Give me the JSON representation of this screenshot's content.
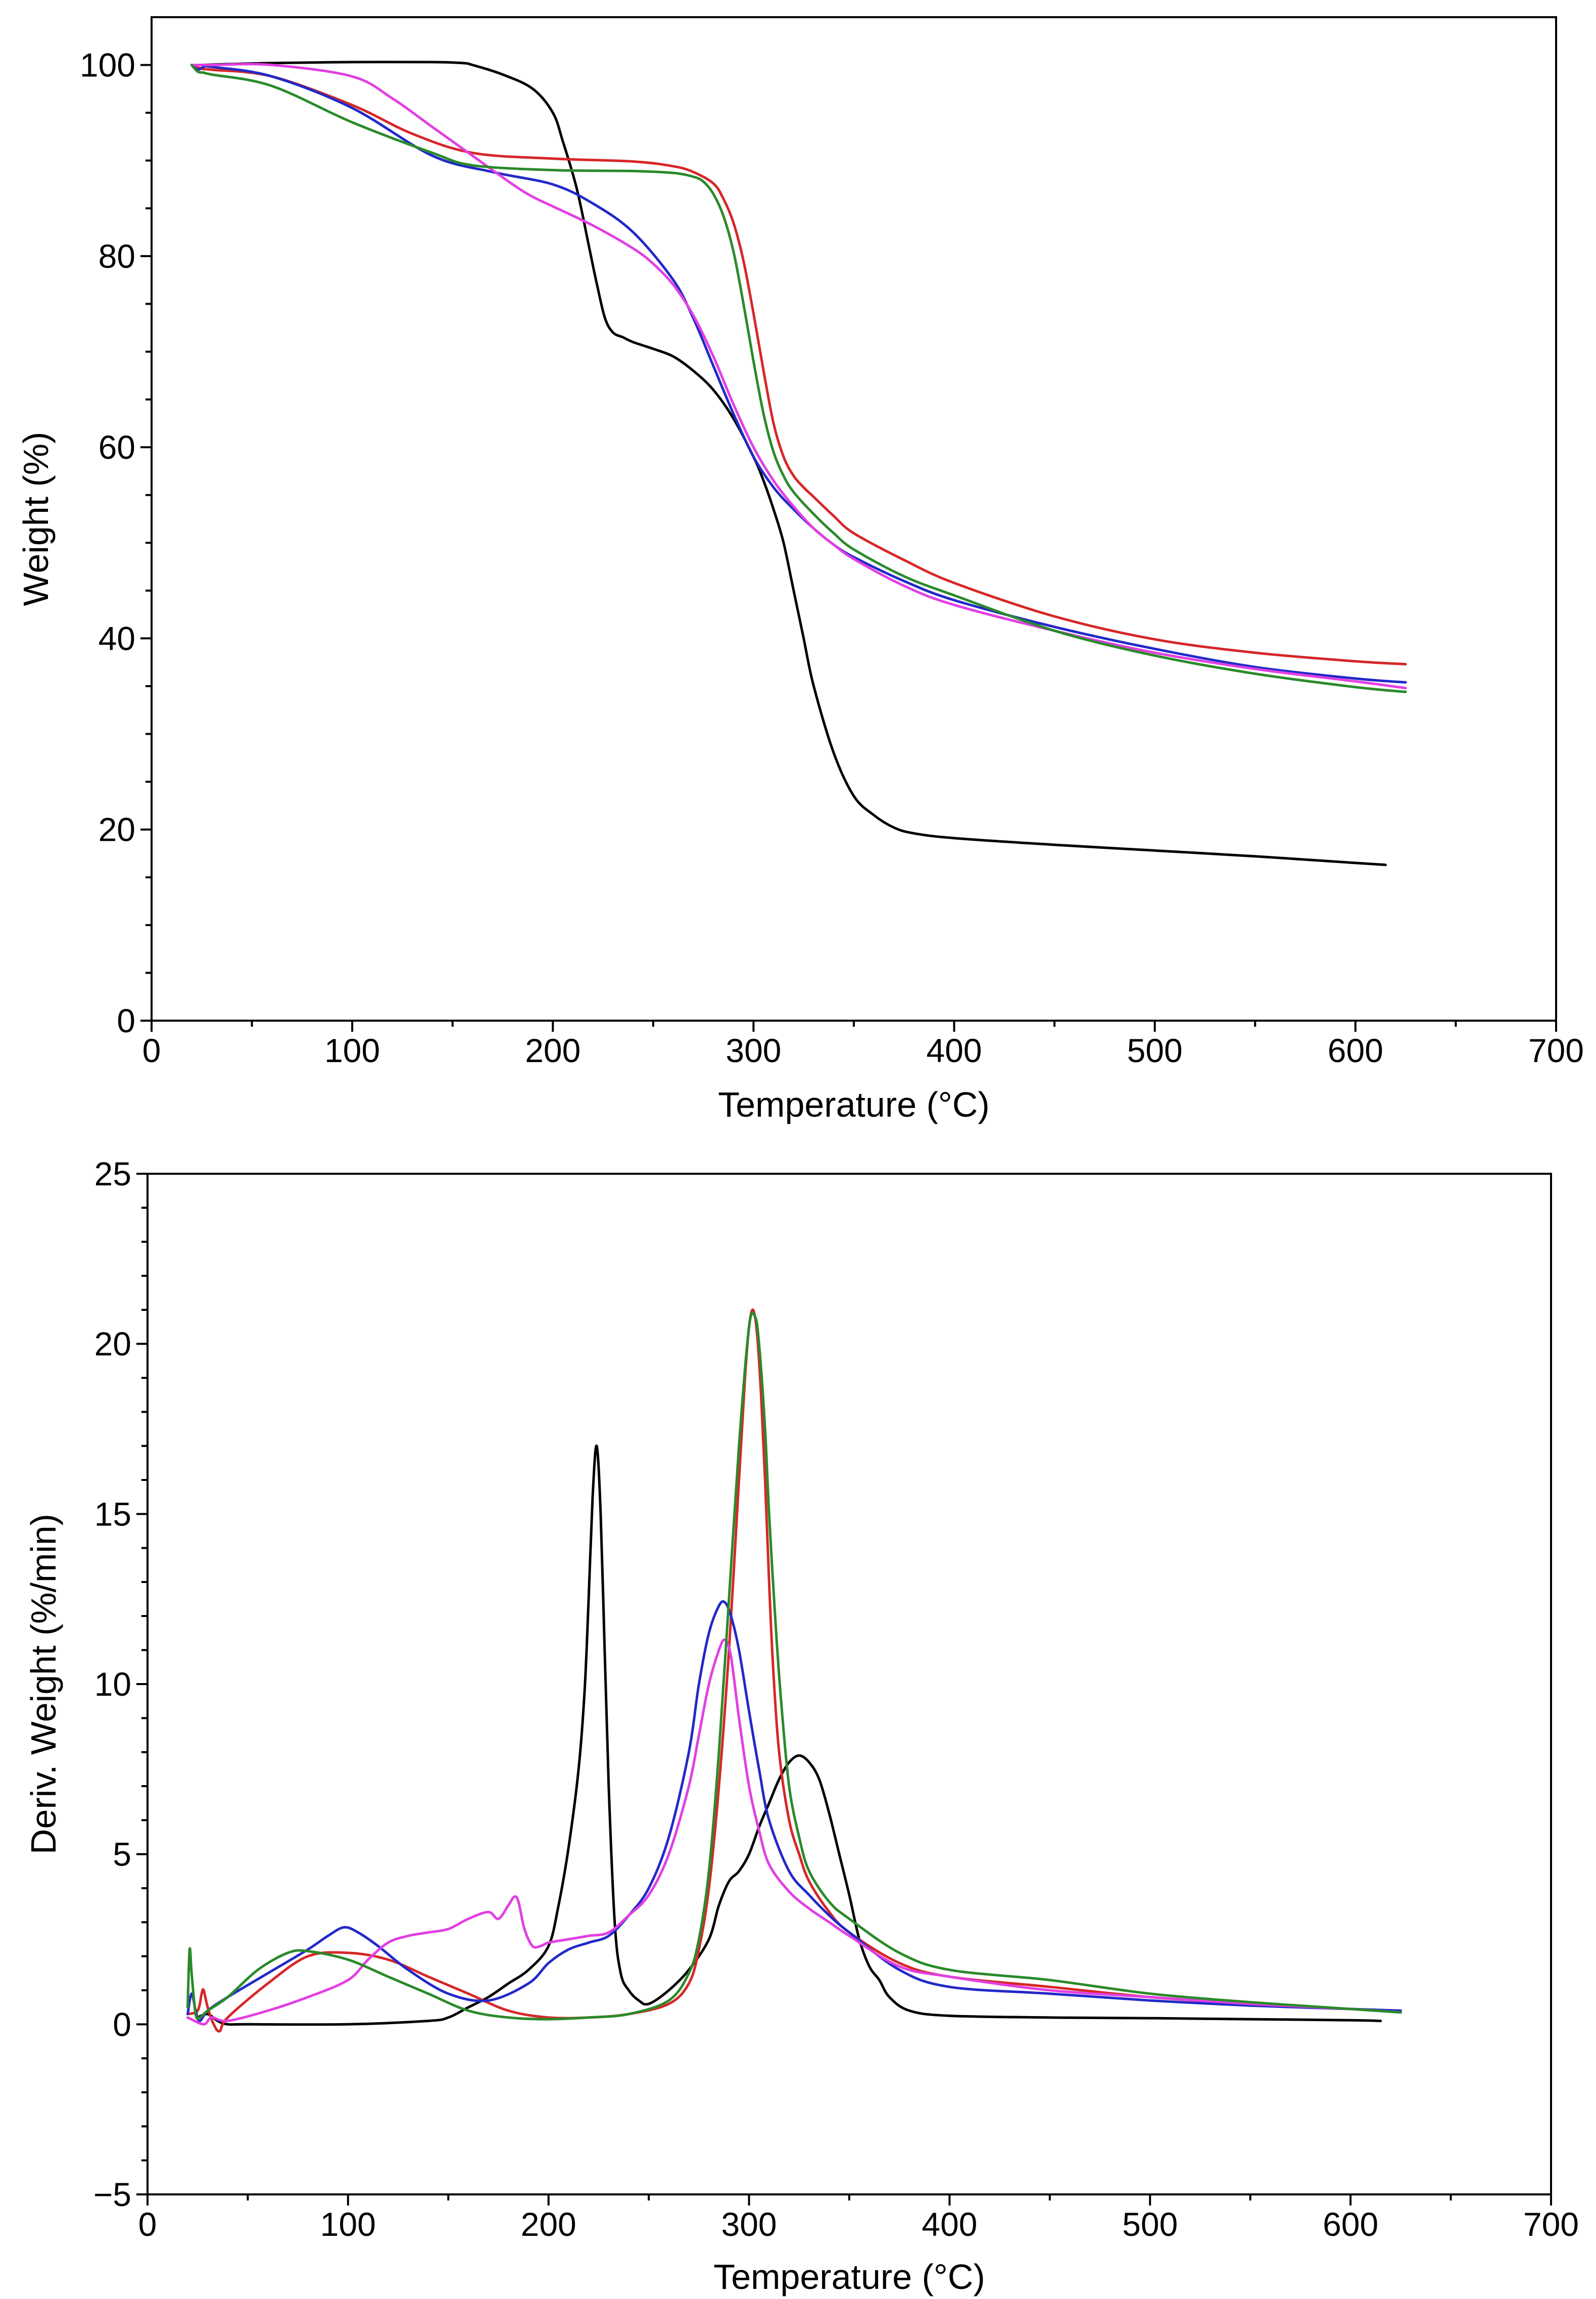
{
  "chart_data": [
    {
      "type": "line",
      "title": "",
      "xlabel": "Temperature (°C)",
      "ylabel": "Weight (%)",
      "xlim": [
        0,
        700
      ],
      "ylim": [
        0,
        105
      ],
      "xticks": [
        0,
        100,
        200,
        300,
        400,
        500,
        600,
        700
      ],
      "yticks": [
        0,
        20,
        40,
        60,
        80,
        100
      ],
      "legend": "none",
      "grid": false,
      "series": [
        {
          "color": "#000000",
          "x": [
            25,
            40,
            60,
            100,
            140,
            155,
            160,
            175,
            190,
            200,
            205,
            212,
            218,
            222,
            226,
            230,
            235,
            240,
            250,
            260,
            270,
            280,
            290,
            300,
            305,
            310,
            315,
            320,
            325,
            330,
            340,
            350,
            360,
            370,
            380,
            400,
            450,
            500,
            550,
            600,
            615
          ],
          "y": [
            100,
            100.1,
            100.2,
            100.3,
            100.3,
            100.2,
            100,
            99,
            97.5,
            95,
            92,
            87,
            81,
            77,
            73.5,
            72,
            71.5,
            71,
            70.3,
            69.5,
            68,
            66,
            63,
            59,
            56.5,
            53.5,
            50,
            45,
            40,
            35,
            28,
            23.5,
            21.5,
            20.2,
            19.6,
            19.1,
            18.4,
            17.8,
            17.2,
            16.5,
            16.3
          ]
        },
        {
          "color": "#d62728",
          "x": [
            20,
            25,
            30,
            60,
            100,
            130,
            160,
            200,
            240,
            260,
            270,
            280,
            285,
            290,
            295,
            300,
            305,
            310,
            315,
            320,
            325,
            330,
            340,
            350,
            375,
            400,
            450,
            500,
            550,
            600,
            625
          ],
          "y": [
            100,
            99.6,
            99.5,
            98.8,
            95.8,
            92.8,
            90.8,
            90.2,
            89.9,
            89.4,
            88.8,
            87.6,
            86,
            83.5,
            79.5,
            74,
            68,
            62.5,
            59,
            57,
            55.8,
            54.8,
            52.8,
            51,
            48.2,
            45.8,
            42.3,
            39.9,
            38.5,
            37.6,
            37.3
          ]
        },
        {
          "color": "#2229c8",
          "x": [
            20,
            23,
            26,
            30,
            60,
            100,
            140,
            170,
            200,
            220,
            240,
            260,
            270,
            280,
            290,
            300,
            310,
            320,
            330,
            340,
            350,
            375,
            400,
            450,
            500,
            550,
            600,
            625
          ],
          "y": [
            100,
            99.5,
            99.8,
            99.8,
            98.8,
            95.5,
            90.5,
            88.8,
            87.5,
            85.5,
            82.5,
            77.5,
            73.5,
            68.5,
            63.5,
            59,
            55.8,
            53.5,
            51.5,
            49.8,
            48.5,
            46,
            44,
            41.2,
            38.9,
            37,
            35.8,
            35.4
          ]
        },
        {
          "color": "#e23fe2",
          "x": [
            20,
            30,
            60,
            100,
            120,
            140,
            160,
            180,
            190,
            200,
            220,
            240,
            250,
            260,
            270,
            280,
            290,
            300,
            310,
            320,
            330,
            340,
            350,
            375,
            400,
            450,
            500,
            550,
            600,
            625
          ],
          "y": [
            100,
            100,
            100,
            98.8,
            96.5,
            93.5,
            90.5,
            87.5,
            86.2,
            85.2,
            83.2,
            80.8,
            79.2,
            77,
            73.8,
            69.5,
            64.5,
            60,
            56.5,
            53.8,
            51.5,
            49.8,
            48.3,
            45.5,
            43.5,
            40.8,
            38.5,
            36.8,
            35.5,
            34.8
          ]
        },
        {
          "color": "#2a8a2a",
          "x": [
            20,
            23,
            26,
            30,
            60,
            100,
            140,
            160,
            200,
            240,
            260,
            270,
            275,
            280,
            285,
            290,
            295,
            300,
            305,
            310,
            315,
            320,
            330,
            340,
            350,
            375,
            400,
            450,
            500,
            550,
            600,
            625
          ],
          "y": [
            100,
            99.3,
            99.2,
            99,
            97.8,
            94,
            90.8,
            89.5,
            89,
            88.9,
            88.7,
            88.3,
            87.8,
            86.5,
            84.2,
            80.5,
            75,
            69,
            63.5,
            59.5,
            57,
            55.3,
            53,
            51,
            49.3,
            46.5,
            44.5,
            40.8,
            38.2,
            36.3,
            34.9,
            34.4
          ]
        }
      ]
    },
    {
      "type": "line",
      "title": "",
      "xlabel": "Temperature (°C)",
      "ylabel": "Deriv. Weight (%/min)",
      "xlim": [
        0,
        700
      ],
      "ylim": [
        -5,
        25
      ],
      "xticks": [
        0,
        100,
        200,
        300,
        400,
        500,
        600,
        700
      ],
      "yticks": [
        -5,
        0,
        5,
        10,
        15,
        20,
        25
      ],
      "legend": "none",
      "grid": false,
      "series": [
        {
          "color": "#000000",
          "x": [
            25,
            30,
            35,
            40,
            50,
            100,
            140,
            150,
            160,
            170,
            180,
            190,
            200,
            205,
            210,
            215,
            218,
            220,
            222,
            224,
            226,
            228,
            230,
            233,
            236,
            240,
            245,
            250,
            260,
            270,
            280,
            285,
            290,
            295,
            300,
            305,
            310,
            315,
            320,
            325,
            330,
            335,
            340,
            345,
            350,
            355,
            360,
            365,
            370,
            380,
            400,
            450,
            500,
            550,
            600,
            615
          ],
          "y": [
            0.2,
            0.3,
            0.1,
            0,
            0,
            0,
            0.1,
            0.2,
            0.5,
            0.8,
            1.2,
            1.6,
            2.3,
            3.5,
            5.2,
            7.5,
            9.8,
            12.5,
            15.5,
            17,
            15,
            11,
            7,
            3,
            1.5,
            1,
            0.7,
            0.6,
            1,
            1.6,
            2.5,
            3.5,
            4.2,
            4.5,
            5,
            5.8,
            6.5,
            7.2,
            7.7,
            7.9,
            7.7,
            7.2,
            6.2,
            5,
            3.8,
            2.5,
            1.7,
            1.3,
            0.8,
            0.4,
            0.25,
            0.2,
            0.18,
            0.15,
            0.12,
            0.1
          ]
        },
        {
          "color": "#d62728",
          "x": [
            20,
            25,
            27,
            28,
            30,
            33,
            36,
            40,
            60,
            80,
            100,
            120,
            140,
            160,
            180,
            200,
            220,
            240,
            260,
            270,
            275,
            280,
            285,
            290,
            295,
            298,
            300,
            302,
            304,
            306,
            308,
            310,
            312,
            315,
            320,
            325,
            330,
            340,
            350,
            375,
            400,
            450,
            500,
            550,
            600,
            625
          ],
          "y": [
            0.3,
            0.4,
            0.9,
            1,
            0.5,
            0,
            -0.2,
            0.2,
            1.2,
            2,
            2.1,
            1.9,
            1.4,
            0.9,
            0.4,
            0.2,
            0.2,
            0.3,
            0.6,
            1.2,
            2.2,
            4,
            7,
            11,
            16,
            19,
            20.5,
            21,
            20.3,
            18.5,
            16,
            13,
            10.5,
            8,
            6,
            5,
            4.2,
            3.3,
            2.7,
            1.8,
            1.4,
            1.1,
            0.8,
            0.6,
            0.45,
            0.4
          ]
        },
        {
          "color": "#2229c8",
          "x": [
            20,
            22,
            24,
            26,
            30,
            40,
            60,
            80,
            90,
            98,
            105,
            115,
            130,
            150,
            170,
            190,
            200,
            210,
            220,
            230,
            240,
            250,
            260,
            270,
            275,
            280,
            285,
            288,
            291,
            295,
            300,
            305,
            310,
            320,
            330,
            340,
            350,
            375,
            400,
            450,
            500,
            550,
            600,
            625
          ],
          "y": [
            0.3,
            0.9,
            0.4,
            0.1,
            0.4,
            0.8,
            1.5,
            2.2,
            2.6,
            2.85,
            2.7,
            2.3,
            1.6,
            0.9,
            0.7,
            1.2,
            1.8,
            2.2,
            2.4,
            2.6,
            3.2,
            4,
            5.5,
            8,
            10,
            11.5,
            12.3,
            12.4,
            12,
            11,
            9.2,
            7.5,
            6,
            4.5,
            3.8,
            3.2,
            2.7,
            1.6,
            1.1,
            0.9,
            0.7,
            0.55,
            0.45,
            0.4
          ]
        },
        {
          "color": "#e23fe2",
          "x": [
            20,
            28,
            32,
            40,
            60,
            80,
            100,
            110,
            120,
            130,
            140,
            150,
            160,
            170,
            175,
            180,
            183,
            185,
            188,
            192,
            196,
            200,
            210,
            220,
            230,
            240,
            250,
            260,
            270,
            275,
            280,
            285,
            288,
            291,
            295,
            300,
            305,
            310,
            320,
            330,
            340,
            350,
            375,
            400,
            450,
            500,
            550,
            600,
            625
          ],
          "y": [
            0.2,
            0,
            0.2,
            0.1,
            0.4,
            0.8,
            1.3,
            1.9,
            2.4,
            2.6,
            2.7,
            2.8,
            3.1,
            3.3,
            3.1,
            3.5,
            3.75,
            3.6,
            2.8,
            2.3,
            2.3,
            2.4,
            2.5,
            2.6,
            2.7,
            3.2,
            3.8,
            5,
            7,
            8.5,
            10,
            11,
            11.3,
            10.8,
            9,
            7,
            5.7,
            4.7,
            3.9,
            3.4,
            3,
            2.6,
            1.7,
            1.4,
            1,
            0.8,
            0.6,
            0.45,
            0.35
          ]
        },
        {
          "color": "#2a8a2a",
          "x": [
            20,
            21,
            22,
            24,
            26,
            30,
            40,
            55,
            70,
            80,
            100,
            120,
            140,
            160,
            180,
            200,
            220,
            240,
            260,
            270,
            275,
            280,
            285,
            290,
            295,
            300,
            303,
            305,
            308,
            310,
            313,
            316,
            320,
            325,
            330,
            340,
            350,
            375,
            400,
            450,
            500,
            550,
            600,
            625
          ],
          "y": [
            0.5,
            2.2,
            1.5,
            0.3,
            0.2,
            0.4,
            0.8,
            1.6,
            2.1,
            2.15,
            1.9,
            1.4,
            0.9,
            0.4,
            0.2,
            0.15,
            0.2,
            0.3,
            0.7,
            1.5,
            2.5,
            4.5,
            8,
            12.5,
            17,
            20.5,
            20.8,
            20,
            17.5,
            15,
            12,
            9.5,
            7,
            5.5,
            4.5,
            3.6,
            3.1,
            2.1,
            1.6,
            1.3,
            0.9,
            0.65,
            0.45,
            0.35
          ]
        }
      ]
    }
  ]
}
